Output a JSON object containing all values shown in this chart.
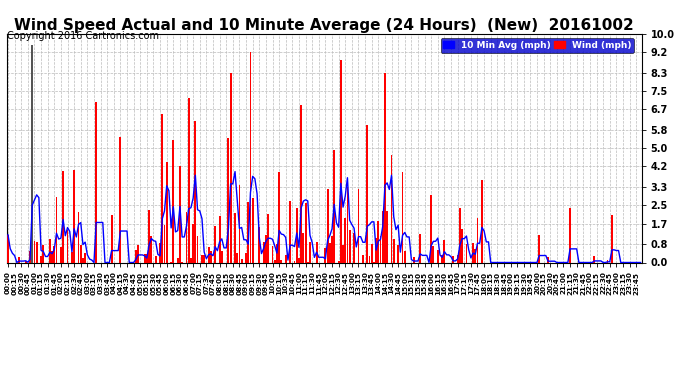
{
  "title": "Wind Speed Actual and 10 Minute Average (24 Hours)  (New)  20161002",
  "copyright": "Copyright 2016 Cartronics.com",
  "legend_blue_label": "10 Min Avg (mph)",
  "legend_red_label": "Wind (mph)",
  "yticks": [
    0.0,
    0.8,
    1.7,
    2.5,
    3.3,
    4.2,
    5.0,
    5.8,
    6.7,
    7.5,
    8.3,
    9.2,
    10.0
  ],
  "ymax": 10.0,
  "ymin": 0.0,
  "bg_color": "#ffffff",
  "plot_bg_color": "#ffffff",
  "grid_color": "#bbbbbb",
  "title_fontsize": 11,
  "copyright_fontsize": 7,
  "bar_color": "#ff0000",
  "line_color": "#0000ff",
  "bar_gray_color": "#555555",
  "seed": 7
}
